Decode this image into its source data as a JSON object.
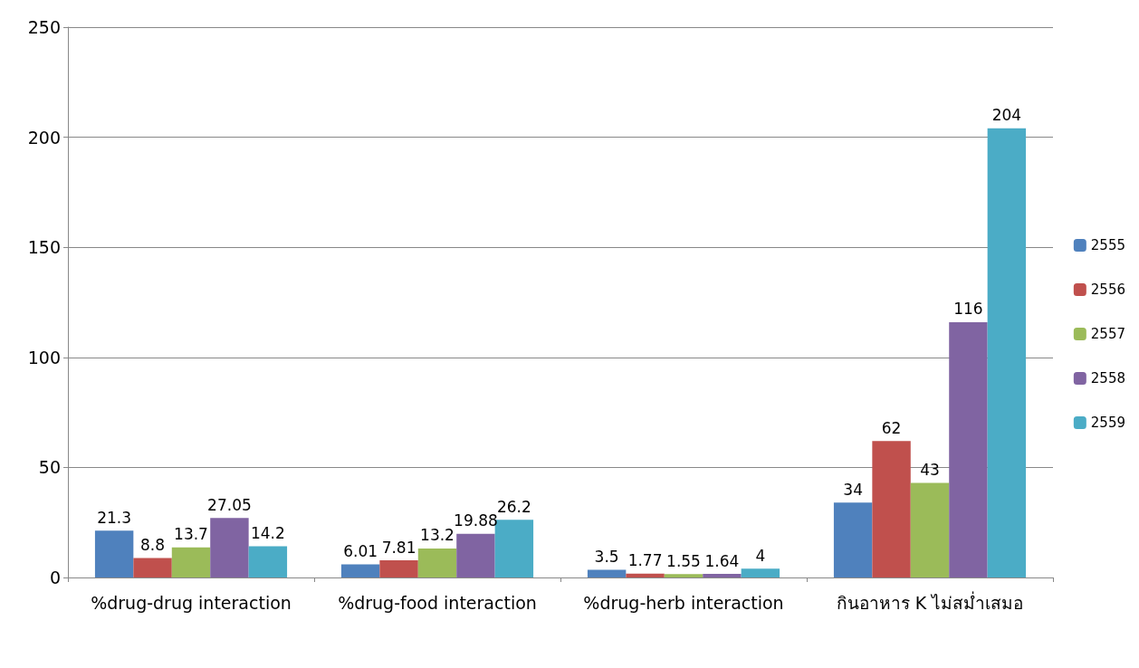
{
  "chart_data": {
    "type": "bar",
    "categories": [
      "%drug-drug interaction",
      "%drug-food interaction",
      "%drug-herb interaction",
      "กินอาหาร K ไม่สม่ำเสมอ"
    ],
    "series": [
      {
        "name": "2555",
        "color": "#4f81bd",
        "values": [
          21.3,
          6.01,
          3.5,
          34
        ]
      },
      {
        "name": "2556",
        "color": "#c0504d",
        "values": [
          8.8,
          7.81,
          1.77,
          62
        ]
      },
      {
        "name": "2557",
        "color": "#9bbb59",
        "values": [
          13.7,
          13.2,
          1.55,
          43
        ]
      },
      {
        "name": "2558",
        "color": "#8064a2",
        "values": [
          27.05,
          19.88,
          1.64,
          116
        ]
      },
      {
        "name": "2559",
        "color": "#4bacc6",
        "values": [
          14.2,
          26.2,
          4,
          204
        ]
      }
    ],
    "ylim": [
      0,
      250
    ],
    "yticks": [
      0,
      50,
      100,
      150,
      200,
      250
    ],
    "grid": "y",
    "legend": "right",
    "data_labels": true
  }
}
